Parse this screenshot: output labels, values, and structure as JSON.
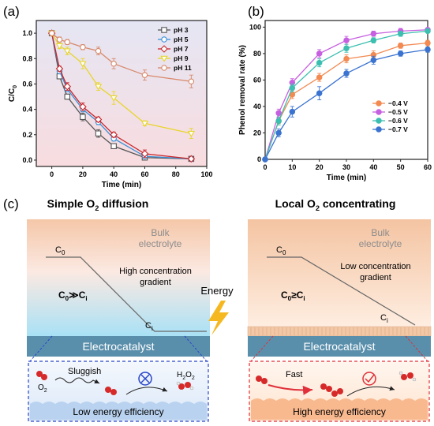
{
  "panel_labels": {
    "a": "(a)",
    "b": "(b)",
    "c": "(c)"
  },
  "chart_data": [
    {
      "id": "a",
      "type": "line",
      "title": "",
      "xlabel": "Time (min)",
      "ylabel": "C/C",
      "ylabel_sub": "0",
      "xlim": [
        -10,
        100
      ],
      "ylim": [
        -0.05,
        1.1
      ],
      "xticks": [
        0,
        20,
        40,
        60,
        80,
        100
      ],
      "yticks": [
        0.0,
        0.2,
        0.4,
        0.6,
        0.8,
        1.0
      ],
      "legend_position": "top-right",
      "background": "gradient-purple-to-pink",
      "series": [
        {
          "name": "pH 3",
          "color": "#555555",
          "marker": "square",
          "x": [
            0,
            5,
            10,
            20,
            30,
            40,
            60,
            90
          ],
          "y": [
            1.0,
            0.66,
            0.5,
            0.34,
            0.21,
            0.11,
            0.02,
            0.01
          ],
          "err": [
            0.02,
            0.02,
            0.02,
            0.03,
            0.03,
            0.01,
            0.01,
            0.01
          ]
        },
        {
          "name": "pH 5",
          "color": "#3b8fd6",
          "marker": "circle",
          "x": [
            0,
            5,
            10,
            20,
            30,
            40,
            60,
            90
          ],
          "y": [
            1.0,
            0.7,
            0.56,
            0.4,
            0.3,
            0.17,
            0.03,
            0.01
          ],
          "err": [
            0.02,
            0.02,
            0.02,
            0.02,
            0.02,
            0.02,
            0.01,
            0.01
          ]
        },
        {
          "name": "pH 7",
          "color": "#c8262b",
          "marker": "diamond",
          "x": [
            0,
            5,
            10,
            20,
            30,
            40,
            60,
            90
          ],
          "y": [
            1.0,
            0.72,
            0.58,
            0.42,
            0.32,
            0.2,
            0.05,
            0.01
          ],
          "err": [
            0.02,
            0.02,
            0.03,
            0.03,
            0.02,
            0.02,
            0.03,
            0.01
          ]
        },
        {
          "name": "pH 9",
          "color": "#e8d52a",
          "marker": "triangle-down",
          "x": [
            0,
            5,
            10,
            20,
            30,
            40,
            60,
            90
          ],
          "y": [
            1.0,
            0.9,
            0.86,
            0.76,
            0.58,
            0.49,
            0.29,
            0.21
          ],
          "err": [
            0.02,
            0.02,
            0.03,
            0.04,
            0.03,
            0.05,
            0.02,
            0.04
          ]
        },
        {
          "name": "pH 11",
          "color": "#d8896a",
          "marker": "circle",
          "x": [
            0,
            5,
            10,
            20,
            30,
            40,
            60,
            90
          ],
          "y": [
            1.0,
            0.95,
            0.93,
            0.89,
            0.86,
            0.76,
            0.67,
            0.62
          ],
          "err": [
            0.02,
            0.02,
            0.02,
            0.02,
            0.03,
            0.04,
            0.04,
            0.05
          ]
        }
      ]
    },
    {
      "id": "b",
      "type": "line",
      "title": "",
      "xlabel": "Time (min)",
      "ylabel": "Phenol removal rate (%)",
      "xlim": [
        0,
        60
      ],
      "ylim": [
        0,
        105
      ],
      "xticks": [
        0,
        10,
        20,
        30,
        40,
        50,
        60
      ],
      "yticks": [
        0,
        20,
        40,
        60,
        80,
        100
      ],
      "legend_position": "center-right",
      "series": [
        {
          "name": "−0.4 V",
          "color": "#f28a52",
          "marker": "circle",
          "x": [
            0,
            5,
            10,
            20,
            30,
            40,
            50,
            60
          ],
          "y": [
            0,
            29,
            49,
            62,
            76,
            79,
            86,
            88
          ],
          "err": [
            0,
            2,
            3,
            3,
            3,
            3,
            2,
            2
          ]
        },
        {
          "name": "−0.5 V",
          "color": "#c660e0",
          "marker": "circle",
          "x": [
            0,
            5,
            10,
            20,
            30,
            40,
            50,
            60
          ],
          "y": [
            0,
            35,
            58,
            80,
            90,
            95,
            97,
            98
          ],
          "err": [
            0,
            3,
            3,
            3,
            3,
            2,
            2,
            1
          ]
        },
        {
          "name": "−0.6 V",
          "color": "#3cbfb0",
          "marker": "circle",
          "x": [
            0,
            5,
            10,
            20,
            30,
            40,
            50,
            60
          ],
          "y": [
            0,
            29,
            54,
            73,
            84,
            90,
            95,
            97
          ],
          "err": [
            0,
            3,
            3,
            3,
            3,
            2,
            2,
            1
          ]
        },
        {
          "name": "−0.7 V",
          "color": "#3a73d0",
          "marker": "circle",
          "x": [
            0,
            5,
            10,
            20,
            30,
            40,
            50,
            60
          ],
          "y": [
            0,
            20,
            36,
            50,
            65,
            75,
            80,
            83
          ],
          "err": [
            0,
            3,
            4,
            5,
            3,
            3,
            2,
            2
          ]
        }
      ]
    }
  ],
  "diagram": {
    "left": {
      "title": "Simple O",
      "title_sub": "2",
      "title_tail": " diffusion",
      "bulk": "Bulk\nelectrolyte",
      "c0": "C",
      "c0_sub": "0",
      "gradient": "High concentration\ngradient",
      "relation_a": "C",
      "relation_a_sub": "0",
      "relation_op": "≫",
      "relation_b": "C",
      "relation_b_sub": "i",
      "ci": "C",
      "ci_sub": "i",
      "electrocatalyst": "Electrocatalyst",
      "inset_speed": "Sluggish",
      "inset_o2": "O",
      "inset_o2_sub": "2",
      "inset_product": "H",
      "inset_product_sub1": "2",
      "inset_product_mid": "O",
      "inset_product_sub2": "2",
      "efficiency": "Low energy efficiency"
    },
    "right": {
      "title": "Local O",
      "title_sub": "2",
      "title_tail": " concentrating",
      "bulk": "Bulk\nelectrolyte",
      "c0": "C",
      "c0_sub": "0",
      "gradient": "Low concentration\ngradient",
      "relation_a": "C",
      "relation_a_sub": "0",
      "relation_op": "≥",
      "relation_b": "C",
      "relation_b_sub": "i",
      "ci": "C",
      "ci_sub": "i",
      "electrocatalyst": "Electrocatalyst",
      "inset_speed": "Fast",
      "efficiency": "High energy efficiency"
    },
    "energy_label": "Energy"
  },
  "colors": {
    "electrocatalyst": "#5a8fac",
    "bulk_top": "#f4c6a6",
    "left_bottom": "#bfe6f3",
    "right_bottom": "#ffe9d6",
    "inset_left": "#eaf2fb",
    "inset_right": "#fff0e4",
    "fail_icon": "#2a46c8",
    "ok_icon": "#e0303a",
    "lightning": "#f5b820"
  }
}
